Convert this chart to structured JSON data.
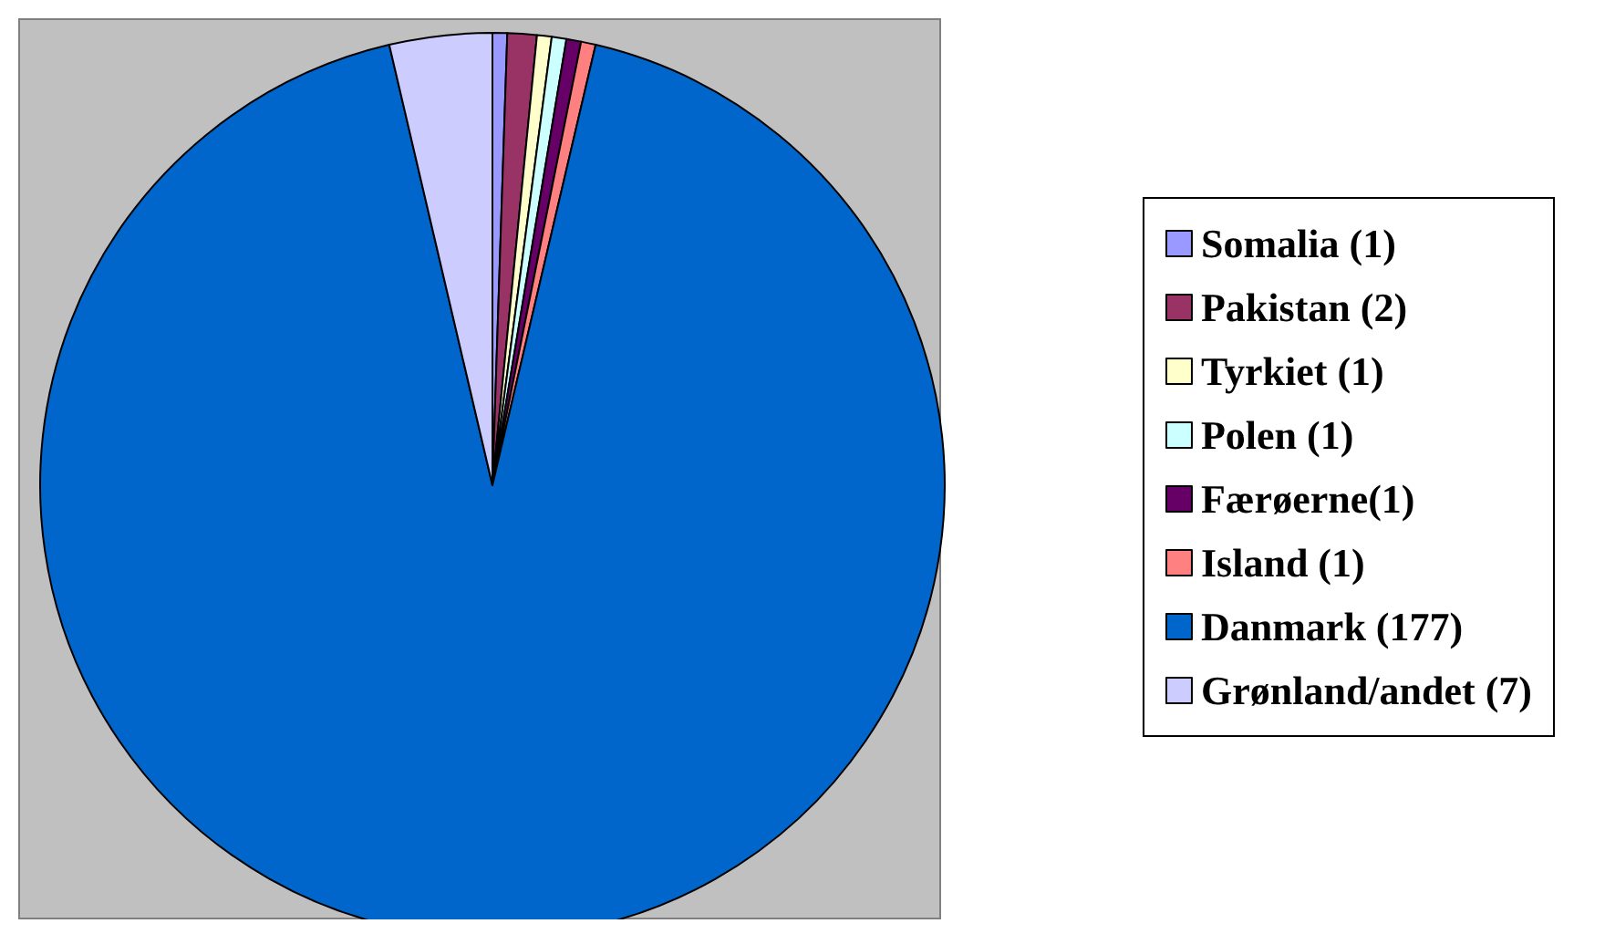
{
  "chart_data": {
    "type": "pie",
    "categories": [
      "Somalia (1)",
      "Pakistan (2)",
      "Tyrkiet (1)",
      "Polen (1)",
      "Færøerne(1)",
      "Island (1)",
      "Danmark (177)",
      "Grønland/andet (7)"
    ],
    "values": [
      1,
      2,
      1,
      1,
      1,
      1,
      177,
      7
    ],
    "colors": [
      "#9999ff",
      "#993366",
      "#ffffcc",
      "#ccffff",
      "#660066",
      "#ff8080",
      "#0066cc",
      "#ccccff"
    ],
    "legend": "right"
  }
}
